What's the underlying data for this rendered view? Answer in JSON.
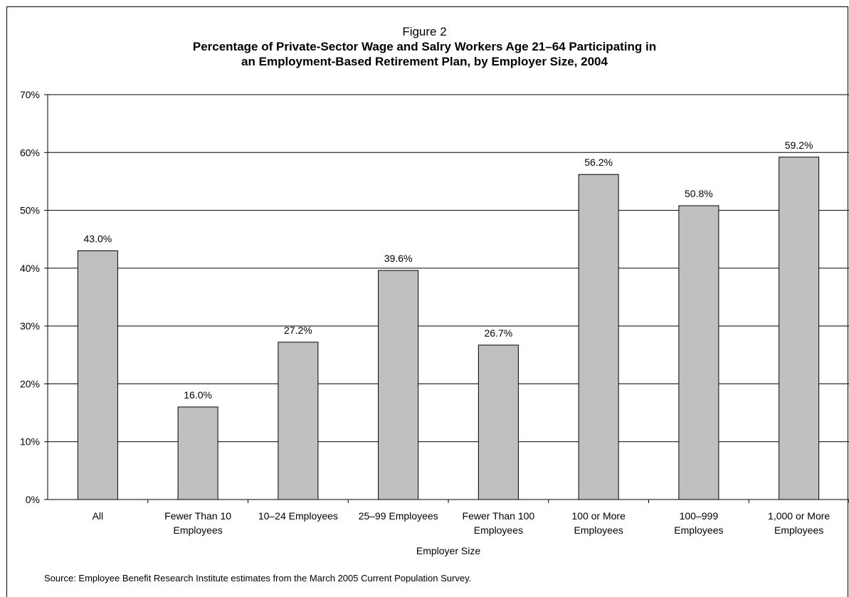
{
  "figure_label": "Figure 2",
  "chart_data": {
    "type": "bar",
    "title": "Percentage of Private-Sector Wage and Salry Workers Age 21–64 Participating in an Employment-Based Retirement Plan, by Employer Size, 2004",
    "title_lines": [
      "Percentage of Private-Sector Wage and Salry Workers Age 21–64 Participating in",
      "an Employment-Based Retirement Plan, by Employer Size, 2004"
    ],
    "xlabel": "Employer Size",
    "ylabel": "",
    "ylim": [
      0,
      70
    ],
    "yticks": [
      "0%",
      "10%",
      "20%",
      "30%",
      "40%",
      "50%",
      "60%",
      "70%"
    ],
    "categories": [
      [
        "All"
      ],
      [
        "Fewer Than 10",
        "Employees"
      ],
      [
        "10–24 Employees"
      ],
      [
        "25–99 Employees"
      ],
      [
        "Fewer Than 100",
        "Employees"
      ],
      [
        "100 or More",
        "Employees"
      ],
      [
        "100–999",
        "Employees"
      ],
      [
        "1,000 or More",
        "Employees"
      ]
    ],
    "values": [
      43.0,
      16.0,
      27.2,
      39.6,
      26.7,
      56.2,
      50.8,
      59.2
    ],
    "data_labels": [
      "43.0%",
      "16.0%",
      "27.2%",
      "39.6%",
      "26.7%",
      "56.2%",
      "50.8%",
      "59.2%"
    ],
    "grid": true,
    "bar_color": "#c0c0c0"
  },
  "source": "Source: Employee Benefit Research Institute estimates from the March 2005 Current Population Survey."
}
